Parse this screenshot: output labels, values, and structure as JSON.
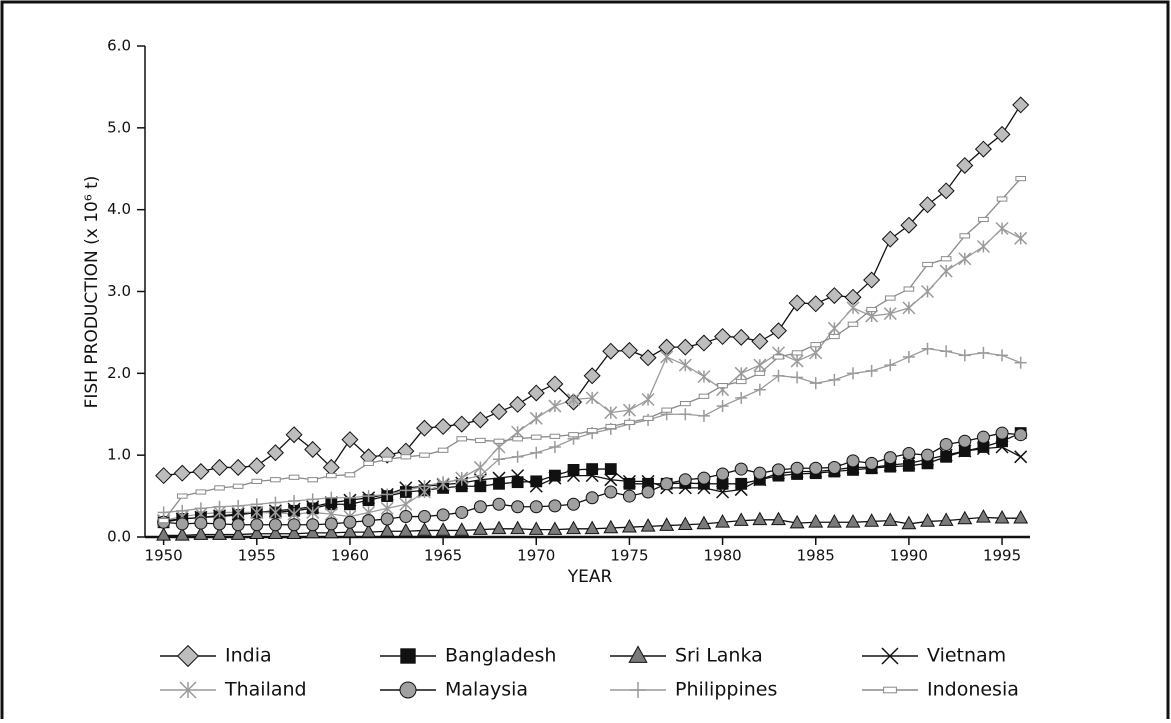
{
  "chart_data": {
    "type": "line",
    "xlabel": "YEAR",
    "ylabel": "FISH PRODUCTION (x 10⁶ t)",
    "x": [
      1950,
      1951,
      1952,
      1953,
      1954,
      1955,
      1956,
      1957,
      1958,
      1959,
      1960,
      1961,
      1962,
      1963,
      1964,
      1965,
      1966,
      1967,
      1968,
      1969,
      1970,
      1971,
      1972,
      1973,
      1974,
      1975,
      1976,
      1977,
      1978,
      1979,
      1980,
      1981,
      1982,
      1983,
      1984,
      1985,
      1986,
      1987,
      1988,
      1989,
      1990,
      1991,
      1992,
      1993,
      1994,
      1995,
      1996
    ],
    "xlim": [
      1949,
      1996.5
    ],
    "xticks": [
      1950,
      1955,
      1960,
      1965,
      1970,
      1975,
      1980,
      1985,
      1990,
      1995
    ],
    "ylim": [
      0,
      6
    ],
    "yticks": [
      {
        "value": 0,
        "label": "0.0"
      },
      {
        "value": 1,
        "label": "1.0"
      },
      {
        "value": 2,
        "label": "2.0"
      },
      {
        "value": 3,
        "label": "3.0"
      },
      {
        "value": 4,
        "label": "4.0"
      },
      {
        "value": 5,
        "label": "5.0"
      },
      {
        "value": 6,
        "label": "6.0"
      }
    ],
    "series": [
      {
        "name": "India",
        "color": "#111111",
        "marker": "diamond",
        "marker_fill": "#bdbdbd",
        "values": [
          0.75,
          0.78,
          0.8,
          0.85,
          0.85,
          0.87,
          1.03,
          1.25,
          1.07,
          0.85,
          1.19,
          0.98,
          1.0,
          1.05,
          1.33,
          1.35,
          1.38,
          1.43,
          1.53,
          1.62,
          1.76,
          1.87,
          1.65,
          1.97,
          2.27,
          2.28,
          2.19,
          2.32,
          2.32,
          2.37,
          2.45,
          2.44,
          2.39,
          2.52,
          2.86,
          2.85,
          2.95,
          2.93,
          3.14,
          3.64,
          3.81,
          4.06,
          4.23,
          4.54,
          4.74,
          4.92,
          5.28
        ]
      },
      {
        "name": "Bangladesh",
        "color": "#111111",
        "marker": "square",
        "marker_fill": "#111111",
        "values": [
          0.18,
          0.22,
          0.24,
          0.25,
          0.27,
          0.3,
          0.3,
          0.32,
          0.35,
          0.4,
          0.4,
          0.45,
          0.5,
          0.55,
          0.57,
          0.6,
          0.62,
          0.62,
          0.65,
          0.67,
          0.68,
          0.75,
          0.82,
          0.83,
          0.83,
          0.65,
          0.65,
          0.65,
          0.66,
          0.65,
          0.65,
          0.65,
          0.7,
          0.75,
          0.77,
          0.78,
          0.8,
          0.82,
          0.84,
          0.86,
          0.87,
          0.9,
          0.98,
          1.05,
          1.1,
          1.17,
          1.27
        ]
      },
      {
        "name": "Sri Lanka",
        "color": "#111111",
        "marker": "triangle",
        "marker_fill": "#7a7a7a",
        "values": [
          0.02,
          0.02,
          0.03,
          0.03,
          0.03,
          0.04,
          0.04,
          0.04,
          0.05,
          0.05,
          0.06,
          0.06,
          0.07,
          0.07,
          0.08,
          0.08,
          0.08,
          0.09,
          0.1,
          0.1,
          0.09,
          0.09,
          0.1,
          0.1,
          0.11,
          0.12,
          0.13,
          0.14,
          0.15,
          0.16,
          0.18,
          0.2,
          0.21,
          0.21,
          0.17,
          0.18,
          0.18,
          0.18,
          0.19,
          0.2,
          0.16,
          0.19,
          0.2,
          0.22,
          0.24,
          0.23,
          0.23
        ]
      },
      {
        "name": "Vietnam",
        "color": "#111111",
        "marker": "cross",
        "marker_fill": "#111111",
        "values": [
          0.2,
          0.22,
          0.24,
          0.26,
          0.28,
          0.3,
          0.32,
          0.34,
          0.37,
          0.42,
          0.45,
          0.48,
          0.52,
          0.6,
          0.62,
          0.64,
          0.66,
          0.7,
          0.72,
          0.75,
          0.62,
          0.72,
          0.75,
          0.75,
          0.7,
          0.68,
          0.68,
          0.6,
          0.6,
          0.6,
          0.55,
          0.58,
          0.7,
          0.78,
          0.8,
          0.8,
          0.82,
          0.85,
          0.85,
          0.88,
          0.9,
          0.95,
          1.0,
          1.05,
          1.08,
          1.1,
          0.98
        ]
      },
      {
        "name": "Thailand",
        "color": "#9a9a9a",
        "marker": "asterisk",
        "marker_fill": "#9a9a9a",
        "values": [
          0.2,
          0.25,
          0.28,
          0.3,
          0.3,
          0.3,
          0.3,
          0.28,
          0.3,
          0.28,
          0.25,
          0.3,
          0.35,
          0.4,
          0.55,
          0.65,
          0.72,
          0.85,
          1.1,
          1.28,
          1.45,
          1.6,
          1.68,
          1.7,
          1.52,
          1.55,
          1.68,
          2.2,
          2.1,
          1.96,
          1.8,
          2.0,
          2.1,
          2.25,
          2.15,
          2.25,
          2.55,
          2.8,
          2.7,
          2.73,
          2.8,
          3.0,
          3.25,
          3.4,
          3.55,
          3.77,
          3.65
        ]
      },
      {
        "name": "Malaysia",
        "color": "#111111",
        "marker": "circle",
        "marker_fill": "#a0a0a0",
        "values": [
          0.18,
          0.16,
          0.17,
          0.16,
          0.15,
          0.15,
          0.15,
          0.15,
          0.15,
          0.16,
          0.18,
          0.2,
          0.22,
          0.25,
          0.25,
          0.27,
          0.3,
          0.37,
          0.4,
          0.37,
          0.37,
          0.38,
          0.4,
          0.48,
          0.55,
          0.5,
          0.55,
          0.65,
          0.7,
          0.72,
          0.77,
          0.83,
          0.78,
          0.82,
          0.84,
          0.84,
          0.85,
          0.93,
          0.9,
          0.97,
          1.02,
          1.0,
          1.13,
          1.17,
          1.22,
          1.27,
          1.25
        ]
      },
      {
        "name": "Philippines",
        "color": "#9a9a9a",
        "marker": "plus",
        "marker_fill": "#9a9a9a",
        "values": [
          0.3,
          0.32,
          0.35,
          0.37,
          0.38,
          0.4,
          0.42,
          0.44,
          0.46,
          0.48,
          0.48,
          0.5,
          0.52,
          0.57,
          0.62,
          0.67,
          0.7,
          0.75,
          0.95,
          0.98,
          1.03,
          1.1,
          1.2,
          1.27,
          1.32,
          1.38,
          1.43,
          1.5,
          1.5,
          1.48,
          1.6,
          1.7,
          1.8,
          1.97,
          1.95,
          1.88,
          1.92,
          2.0,
          2.03,
          2.1,
          2.2,
          2.3,
          2.27,
          2.22,
          2.25,
          2.22,
          2.13
        ]
      },
      {
        "name": "Indonesia",
        "color": "#8a8a8a",
        "marker": "bar",
        "marker_fill": "#ffffff",
        "values": [
          0.2,
          0.5,
          0.55,
          0.6,
          0.62,
          0.68,
          0.7,
          0.73,
          0.7,
          0.75,
          0.76,
          0.9,
          0.95,
          0.98,
          1.0,
          1.06,
          1.2,
          1.18,
          1.17,
          1.2,
          1.22,
          1.23,
          1.25,
          1.3,
          1.35,
          1.4,
          1.45,
          1.55,
          1.63,
          1.72,
          1.85,
          1.9,
          2.0,
          2.2,
          2.25,
          2.35,
          2.45,
          2.6,
          2.78,
          2.92,
          3.03,
          3.33,
          3.4,
          3.68,
          3.88,
          4.13,
          4.38
        ]
      }
    ]
  }
}
